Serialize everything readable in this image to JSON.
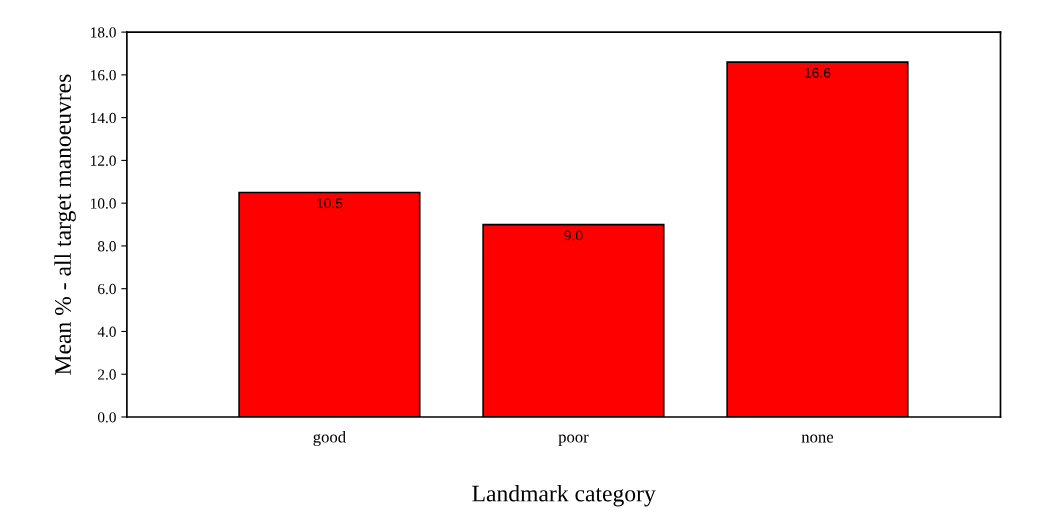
{
  "chart_data": {
    "type": "bar",
    "xlabel": "Landmark category",
    "ylabel": "Mean % - all target manoeuvres",
    "categories": [
      "good",
      "poor",
      "none"
    ],
    "values": [
      10.5,
      9.0,
      16.6
    ],
    "value_labels": [
      "10.5",
      "9.0",
      "16.6"
    ],
    "color": "#ff0000",
    "ylim": [
      0,
      18
    ],
    "yticks": [
      {
        "value": 0,
        "label": "0.0"
      },
      {
        "value": 2,
        "label": "2.0"
      },
      {
        "value": 4,
        "label": "4.0"
      },
      {
        "value": 6,
        "label": "6.0"
      },
      {
        "value": 8,
        "label": "8.0"
      },
      {
        "value": 10,
        "label": "10.0"
      },
      {
        "value": 12,
        "label": "12.0"
      },
      {
        "value": 14,
        "label": "14.0"
      },
      {
        "value": 16,
        "label": "16.0"
      },
      {
        "value": 18,
        "label": "18.0"
      }
    ],
    "grid": false
  }
}
